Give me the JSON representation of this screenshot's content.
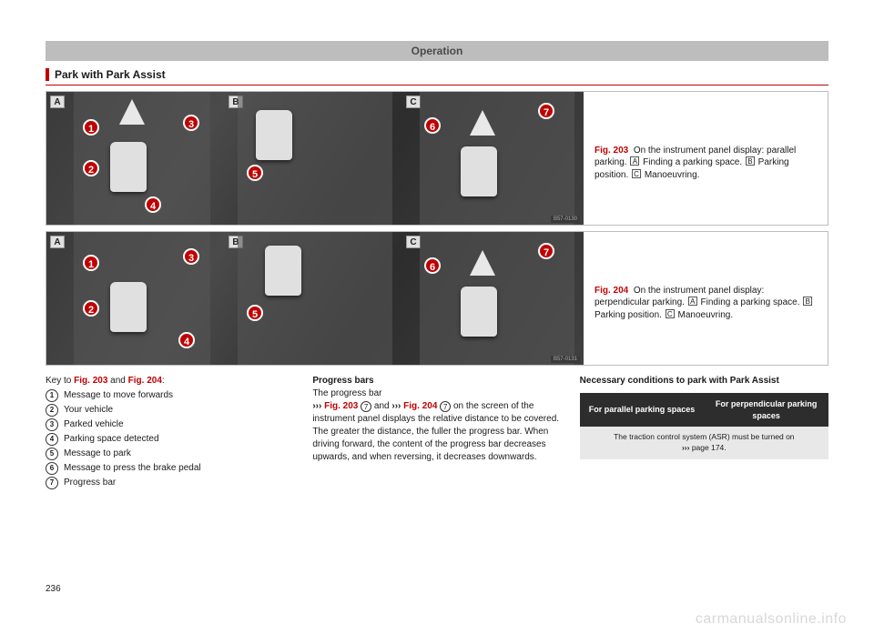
{
  "header": "Operation",
  "subtitle": "Park with Park Assist",
  "fig203": {
    "ref": "Fig. 203",
    "caption_intro": "On the instrument panel display: parallel parking.",
    "partA": "Finding a parking space.",
    "partB": "Parking position.",
    "partC": "Manoeuvring.",
    "img_code": "B57-0130",
    "panels": [
      "A",
      "B",
      "C"
    ],
    "callouts_A": [
      "1",
      "2",
      "3",
      "4"
    ],
    "callouts_B": [
      "5"
    ],
    "callouts_C": [
      "6",
      "7"
    ]
  },
  "fig204": {
    "ref": "Fig. 204",
    "caption_intro": "On the instrument panel display: perpendicular parking.",
    "partA": "Finding a parking space.",
    "partB": "Parking position.",
    "partC": "Manoeuvring.",
    "img_code": "B57-0131",
    "panels": [
      "A",
      "B",
      "C"
    ],
    "callouts_A": [
      "1",
      "2",
      "3",
      "4"
    ],
    "callouts_B": [
      "5"
    ],
    "callouts_C": [
      "6",
      "7"
    ]
  },
  "col1": {
    "key_intro_pre": "Key to ",
    "key_intro_and": " and ",
    "key_intro_post": ":",
    "items": [
      {
        "n": "1",
        "t": "Message to move forwards"
      },
      {
        "n": "2",
        "t": "Your vehicle"
      },
      {
        "n": "3",
        "t": "Parked vehicle"
      },
      {
        "n": "4",
        "t": "Parking space detected"
      },
      {
        "n": "5",
        "t": "Message to park"
      },
      {
        "n": "6",
        "t": "Message to press the brake pedal"
      },
      {
        "n": "7",
        "t": "Progress bar"
      }
    ]
  },
  "col2": {
    "heading": "Progress bars",
    "p1_pre": "The progress bar",
    "p1_arrow": "›››",
    "p1_ref1": "Fig. 203",
    "p1_c1": "7",
    "p1_and": " and ",
    "p1_ref2": "Fig. 204",
    "p1_c2": "7",
    "p1_post": " on the screen of the instrument panel displays the relative distance to be covered. The greater the distance, the fuller the progress bar. When driving forward, the content of the progress bar decreases upwards, and when reversing, it decreases downwards."
  },
  "col3": {
    "heading": "Necessary conditions to park with Park Assist",
    "th1": "For parallel parking spaces",
    "th2": "For perpendicular parking spaces",
    "row1_pre": "The traction control system (ASR) must be turned on ",
    "row1_arrow": "›››",
    "row1_ref": " page 174."
  },
  "page_number": "236",
  "watermark": "carmanualsonline.info",
  "colors": {
    "accent": "#c00000",
    "header_bg": "#bdbdbd",
    "th_bg": "#2d2d2d",
    "td_bg": "#e8e8e8"
  }
}
